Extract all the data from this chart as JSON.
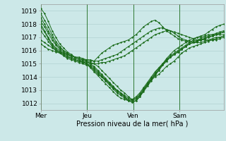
{
  "bg_color": "#cce8e8",
  "grid_color": "#aacccc",
  "line_color": "#1a6b1a",
  "marker_color": "#1a6b1a",
  "xlabel": "Pression niveau de la mer( hPa )",
  "xlabel_fontsize": 7,
  "tick_fontsize": 6.5,
  "ylim": [
    1011.5,
    1019.5
  ],
  "yticks": [
    1012,
    1013,
    1014,
    1015,
    1016,
    1017,
    1018,
    1019
  ],
  "day_labels": [
    "Mer",
    "Jeu",
    "Ven",
    "Sam"
  ],
  "day_positions": [
    0,
    48,
    96,
    144
  ],
  "total_hours": 190,
  "series": [
    [
      1018.5,
      1018.0,
      1017.5,
      1017.0,
      1016.5,
      1016.2,
      1016.0,
      1015.8,
      1015.6,
      1015.5,
      1015.5,
      1015.4,
      1015.3,
      1015.3,
      1015.2,
      1015.5,
      1015.8,
      1016.0,
      1016.2,
      1016.4,
      1016.5,
      1016.6,
      1016.7,
      1016.8,
      1017.0,
      1017.2,
      1017.5,
      1017.8,
      1018.0,
      1018.2,
      1018.3,
      1018.1,
      1017.8,
      1017.5,
      1017.3,
      1017.1,
      1016.9,
      1016.8,
      1016.7,
      1016.6,
      1016.8,
      1017.0,
      1017.0,
      1017.1,
      1017.2,
      1017.2,
      1017.2,
      1017.2,
      1017.2
    ],
    [
      1018.0,
      1017.5,
      1017.0,
      1016.5,
      1016.2,
      1016.0,
      1015.8,
      1015.6,
      1015.4,
      1015.3,
      1015.2,
      1015.1,
      1015.0,
      1014.8,
      1014.5,
      1014.2,
      1014.0,
      1013.8,
      1013.5,
      1013.2,
      1013.0,
      1012.8,
      1012.5,
      1012.2,
      1012.1,
      1012.2,
      1012.5,
      1013.0,
      1013.5,
      1013.8,
      1014.0,
      1014.2,
      1014.5,
      1014.8,
      1015.0,
      1015.2,
      1015.5,
      1015.8,
      1016.0,
      1016.2,
      1016.3,
      1016.4,
      1016.5,
      1016.6,
      1016.7,
      1016.8,
      1016.9,
      1017.0,
      1017.1
    ],
    [
      1018.2,
      1017.8,
      1017.3,
      1016.8,
      1016.4,
      1016.1,
      1015.9,
      1015.7,
      1015.5,
      1015.4,
      1015.3,
      1015.2,
      1015.0,
      1014.7,
      1014.4,
      1014.1,
      1013.8,
      1013.5,
      1013.2,
      1012.9,
      1012.6,
      1012.4,
      1012.3,
      1012.2,
      1012.3,
      1012.5,
      1012.8,
      1013.2,
      1013.6,
      1014.0,
      1014.4,
      1014.7,
      1015.0,
      1015.3,
      1015.5,
      1015.7,
      1015.9,
      1016.1,
      1016.3,
      1016.5,
      1016.6,
      1016.7,
      1016.8,
      1016.9,
      1017.0,
      1017.1,
      1017.2,
      1017.3,
      1017.4
    ],
    [
      1018.8,
      1018.3,
      1017.8,
      1017.2,
      1016.7,
      1016.3,
      1016.0,
      1015.8,
      1015.6,
      1015.5,
      1015.4,
      1015.3,
      1015.2,
      1015.0,
      1014.8,
      1014.5,
      1014.2,
      1013.9,
      1013.6,
      1013.3,
      1013.0,
      1012.8,
      1012.6,
      1012.4,
      1012.3,
      1012.4,
      1012.7,
      1013.1,
      1013.5,
      1013.9,
      1014.3,
      1014.7,
      1015.0,
      1015.3,
      1015.6,
      1015.8,
      1016.0,
      1016.2,
      1016.4,
      1016.6,
      1016.7,
      1016.8,
      1016.9,
      1017.0,
      1017.1,
      1017.2,
      1017.3,
      1017.4,
      1017.5
    ],
    [
      1019.2,
      1018.8,
      1018.2,
      1017.5,
      1017.0,
      1016.5,
      1016.2,
      1015.9,
      1015.7,
      1015.5,
      1015.4,
      1015.3,
      1015.2,
      1015.1,
      1015.0,
      1014.8,
      1014.5,
      1014.2,
      1013.9,
      1013.6,
      1013.3,
      1013.0,
      1012.8,
      1012.5,
      1012.3,
      1012.4,
      1012.6,
      1013.0,
      1013.4,
      1013.8,
      1014.2,
      1014.6,
      1015.0,
      1015.4,
      1015.7,
      1016.0,
      1016.2,
      1016.4,
      1016.6,
      1016.8,
      1016.9,
      1017.0,
      1017.1,
      1017.2,
      1017.4,
      1017.6,
      1017.8,
      1017.9,
      1018.0
    ],
    [
      1017.8,
      1017.4,
      1016.9,
      1016.4,
      1016.1,
      1015.9,
      1015.7,
      1015.5,
      1015.4,
      1015.3,
      1015.2,
      1015.1,
      1015.0,
      1014.9,
      1014.7,
      1014.4,
      1014.1,
      1013.8,
      1013.5,
      1013.2,
      1012.9,
      1012.7,
      1012.5,
      1012.3,
      1012.2,
      1012.3,
      1012.6,
      1013.0,
      1013.4,
      1013.8,
      1014.2,
      1014.5,
      1014.9,
      1015.2,
      1015.5,
      1015.7,
      1015.9,
      1016.1,
      1016.3,
      1016.5,
      1016.6,
      1016.7,
      1016.8,
      1016.9,
      1017.0,
      1017.1,
      1017.2,
      1017.3,
      1017.4
    ],
    [
      1017.5,
      1017.1,
      1016.7,
      1016.3,
      1016.0,
      1015.8,
      1015.6,
      1015.4,
      1015.3,
      1015.2,
      1015.1,
      1015.0,
      1014.9,
      1014.8,
      1014.6,
      1014.3,
      1014.0,
      1013.7,
      1013.4,
      1013.1,
      1012.8,
      1012.6,
      1012.4,
      1012.2,
      1012.1,
      1012.2,
      1012.5,
      1012.9,
      1013.3,
      1013.7,
      1014.1,
      1014.5,
      1014.9,
      1015.2,
      1015.5,
      1015.7,
      1015.9,
      1016.1,
      1016.3,
      1016.5,
      1016.6,
      1016.7,
      1016.8,
      1016.9,
      1017.0,
      1017.1,
      1017.2,
      1017.3,
      1017.4
    ],
    [
      1016.5,
      1016.3,
      1016.1,
      1016.0,
      1015.9,
      1015.8,
      1015.7,
      1015.5,
      1015.4,
      1015.3,
      1015.2,
      1015.2,
      1015.1,
      1015.0,
      1015.0,
      1015.0,
      1015.1,
      1015.1,
      1015.2,
      1015.3,
      1015.4,
      1015.5,
      1015.6,
      1015.8,
      1016.0,
      1016.2,
      1016.4,
      1016.6,
      1016.8,
      1017.0,
      1017.2,
      1017.3,
      1017.4,
      1017.5,
      1017.5,
      1017.4,
      1017.3,
      1017.2,
      1017.1,
      1017.0,
      1016.9,
      1016.8,
      1016.8,
      1016.8,
      1016.8,
      1016.8,
      1016.8,
      1016.9,
      1017.0
    ],
    [
      1016.8,
      1016.6,
      1016.4,
      1016.2,
      1016.0,
      1015.9,
      1015.8,
      1015.7,
      1015.6,
      1015.5,
      1015.4,
      1015.3,
      1015.3,
      1015.2,
      1015.2,
      1015.2,
      1015.3,
      1015.4,
      1015.5,
      1015.6,
      1015.7,
      1015.9,
      1016.1,
      1016.3,
      1016.5,
      1016.7,
      1016.9,
      1017.1,
      1017.3,
      1017.5,
      1017.6,
      1017.7,
      1017.7,
      1017.6,
      1017.5,
      1017.3,
      1017.1,
      1016.9,
      1016.8,
      1016.7,
      1016.6,
      1016.6,
      1016.6,
      1016.7,
      1016.8,
      1016.9,
      1017.0,
      1017.0,
      1017.1
    ]
  ]
}
